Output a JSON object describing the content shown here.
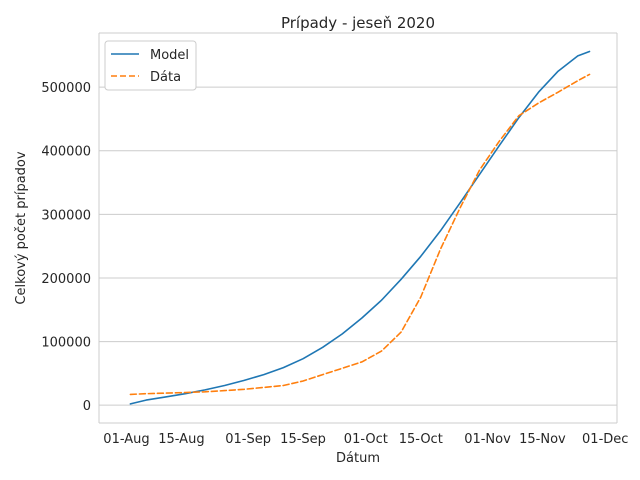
{
  "chart_data": {
    "type": "line",
    "title": "Prípady - jeseň 2020",
    "xlabel": "Dátum",
    "ylabel": "Celkový počet prípadov",
    "x_tick_labels": [
      "01-Aug",
      "15-Aug",
      "01-Sep",
      "15-Sep",
      "01-Oct",
      "15-Oct",
      "01-Nov",
      "15-Nov",
      "01-Dec"
    ],
    "x_tick_days": [
      0,
      14,
      31,
      45,
      61,
      75,
      92,
      106,
      122
    ],
    "y_tick_labels": [
      "0",
      "100000",
      "200000",
      "300000",
      "400000",
      "500000"
    ],
    "y_ticks": [
      0,
      100000,
      200000,
      300000,
      400000,
      500000
    ],
    "xlim_days": [
      -7,
      125
    ],
    "ylim": [
      -28000,
      585000
    ],
    "grid": "horizontal",
    "legend_position": "top-left",
    "x_days": [
      1,
      5,
      10,
      15,
      20,
      25,
      30,
      35,
      40,
      45,
      50,
      55,
      60,
      65,
      70,
      75,
      80,
      85,
      90,
      95,
      100,
      105,
      110,
      115,
      118
    ],
    "series": [
      {
        "name": "Model",
        "color": "#1f77b4",
        "style": "solid",
        "values": [
          2000,
          8000,
          13000,
          18000,
          24000,
          31000,
          39000,
          48000,
          59000,
          73000,
          91000,
          112000,
          137000,
          165000,
          198000,
          234000,
          274000,
          318000,
          363000,
          408000,
          452000,
          492000,
          525000,
          549000,
          556000
        ]
      },
      {
        "name": "Dáta",
        "color": "#ff7f0e",
        "style": "dashed",
        "values": [
          17000,
          18000,
          19000,
          20000,
          21000,
          23000,
          25000,
          28000,
          31000,
          38000,
          48000,
          58000,
          68000,
          85000,
          115000,
          170000,
          245000,
          310000,
          370000,
          415000,
          455000,
          475000,
          492000,
          510000,
          520000
        ]
      }
    ]
  }
}
